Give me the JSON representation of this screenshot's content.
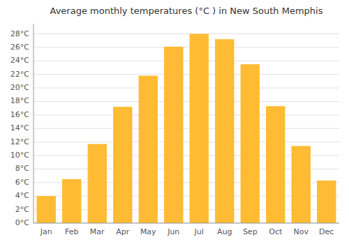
{
  "chart_data": {
    "type": "bar",
    "title": "Average monthly temperatures (°C ) in New South Memphis",
    "categories": [
      "Jan",
      "Feb",
      "Mar",
      "Apr",
      "May",
      "Jun",
      "Jul",
      "Aug",
      "Sep",
      "Oct",
      "Nov",
      "Dec"
    ],
    "values": [
      4.0,
      6.5,
      11.7,
      17.2,
      21.8,
      26.1,
      28.0,
      27.2,
      23.5,
      17.3,
      11.4,
      6.3
    ],
    "color": "#FFBB33",
    "ylim": [
      0,
      29.5
    ],
    "yticks": [
      {
        "value": 0,
        "label": "0°C"
      },
      {
        "value": 2,
        "label": "2°C"
      },
      {
        "value": 4,
        "label": "4°C"
      },
      {
        "value": 6,
        "label": "6°C"
      },
      {
        "value": 8,
        "label": "8°C"
      },
      {
        "value": 10,
        "label": "10°C"
      },
      {
        "value": 12,
        "label": "12°C"
      },
      {
        "value": 14,
        "label": "14°C"
      },
      {
        "value": 16,
        "label": "16°C"
      },
      {
        "value": 18,
        "label": "18°C"
      },
      {
        "value": 20,
        "label": "20°C"
      },
      {
        "value": 22,
        "label": "22°C"
      },
      {
        "value": 24,
        "label": "24°C"
      },
      {
        "value": 26,
        "label": "26°C"
      },
      {
        "value": 28,
        "label": "28°C"
      }
    ],
    "grid": true
  }
}
